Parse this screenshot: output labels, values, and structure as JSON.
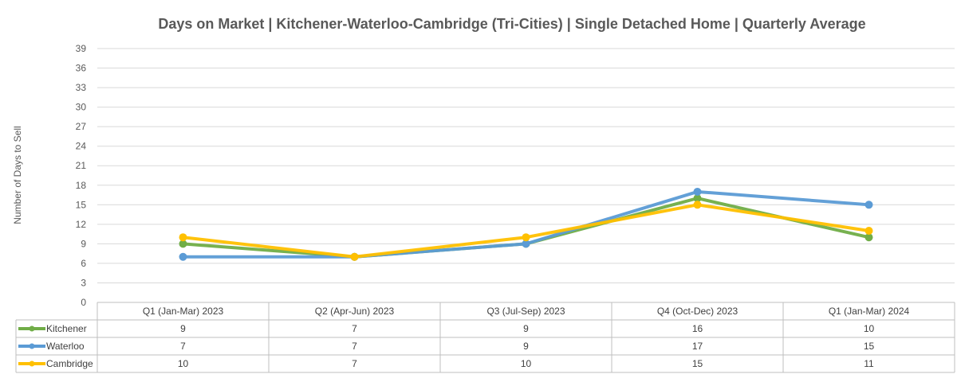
{
  "chart_data": {
    "type": "line",
    "title": "Days on Market | Kitchener-Waterloo-Cambridge (Tri-Cities) | Single Detached Home |  Quarterly Average",
    "xlabel": "",
    "ylabel": "Number of Days to Sell",
    "ylim": [
      0,
      39
    ],
    "yticks": [
      0,
      3,
      6,
      9,
      12,
      15,
      18,
      21,
      24,
      27,
      30,
      33,
      36,
      39
    ],
    "grid": true,
    "legend": "data-table-left",
    "categories": [
      "Q1 (Jan-Mar) 2023",
      "Q2 (Apr-Jun) 2023",
      "Q3 (Jul-Sep) 2023",
      "Q4 (Oct-Dec) 2023",
      "Q1 (Jan-Mar) 2024"
    ],
    "series": [
      {
        "name": "Kitchener",
        "values": [
          9,
          7,
          9,
          16,
          10
        ],
        "color": "#70AD47"
      },
      {
        "name": "Waterloo",
        "values": [
          7,
          7,
          9,
          17,
          15
        ],
        "color": "#5B9BD5"
      },
      {
        "name": "Cambridge",
        "values": [
          10,
          7,
          10,
          15,
          11
        ],
        "color": "#FFC000"
      }
    ]
  }
}
